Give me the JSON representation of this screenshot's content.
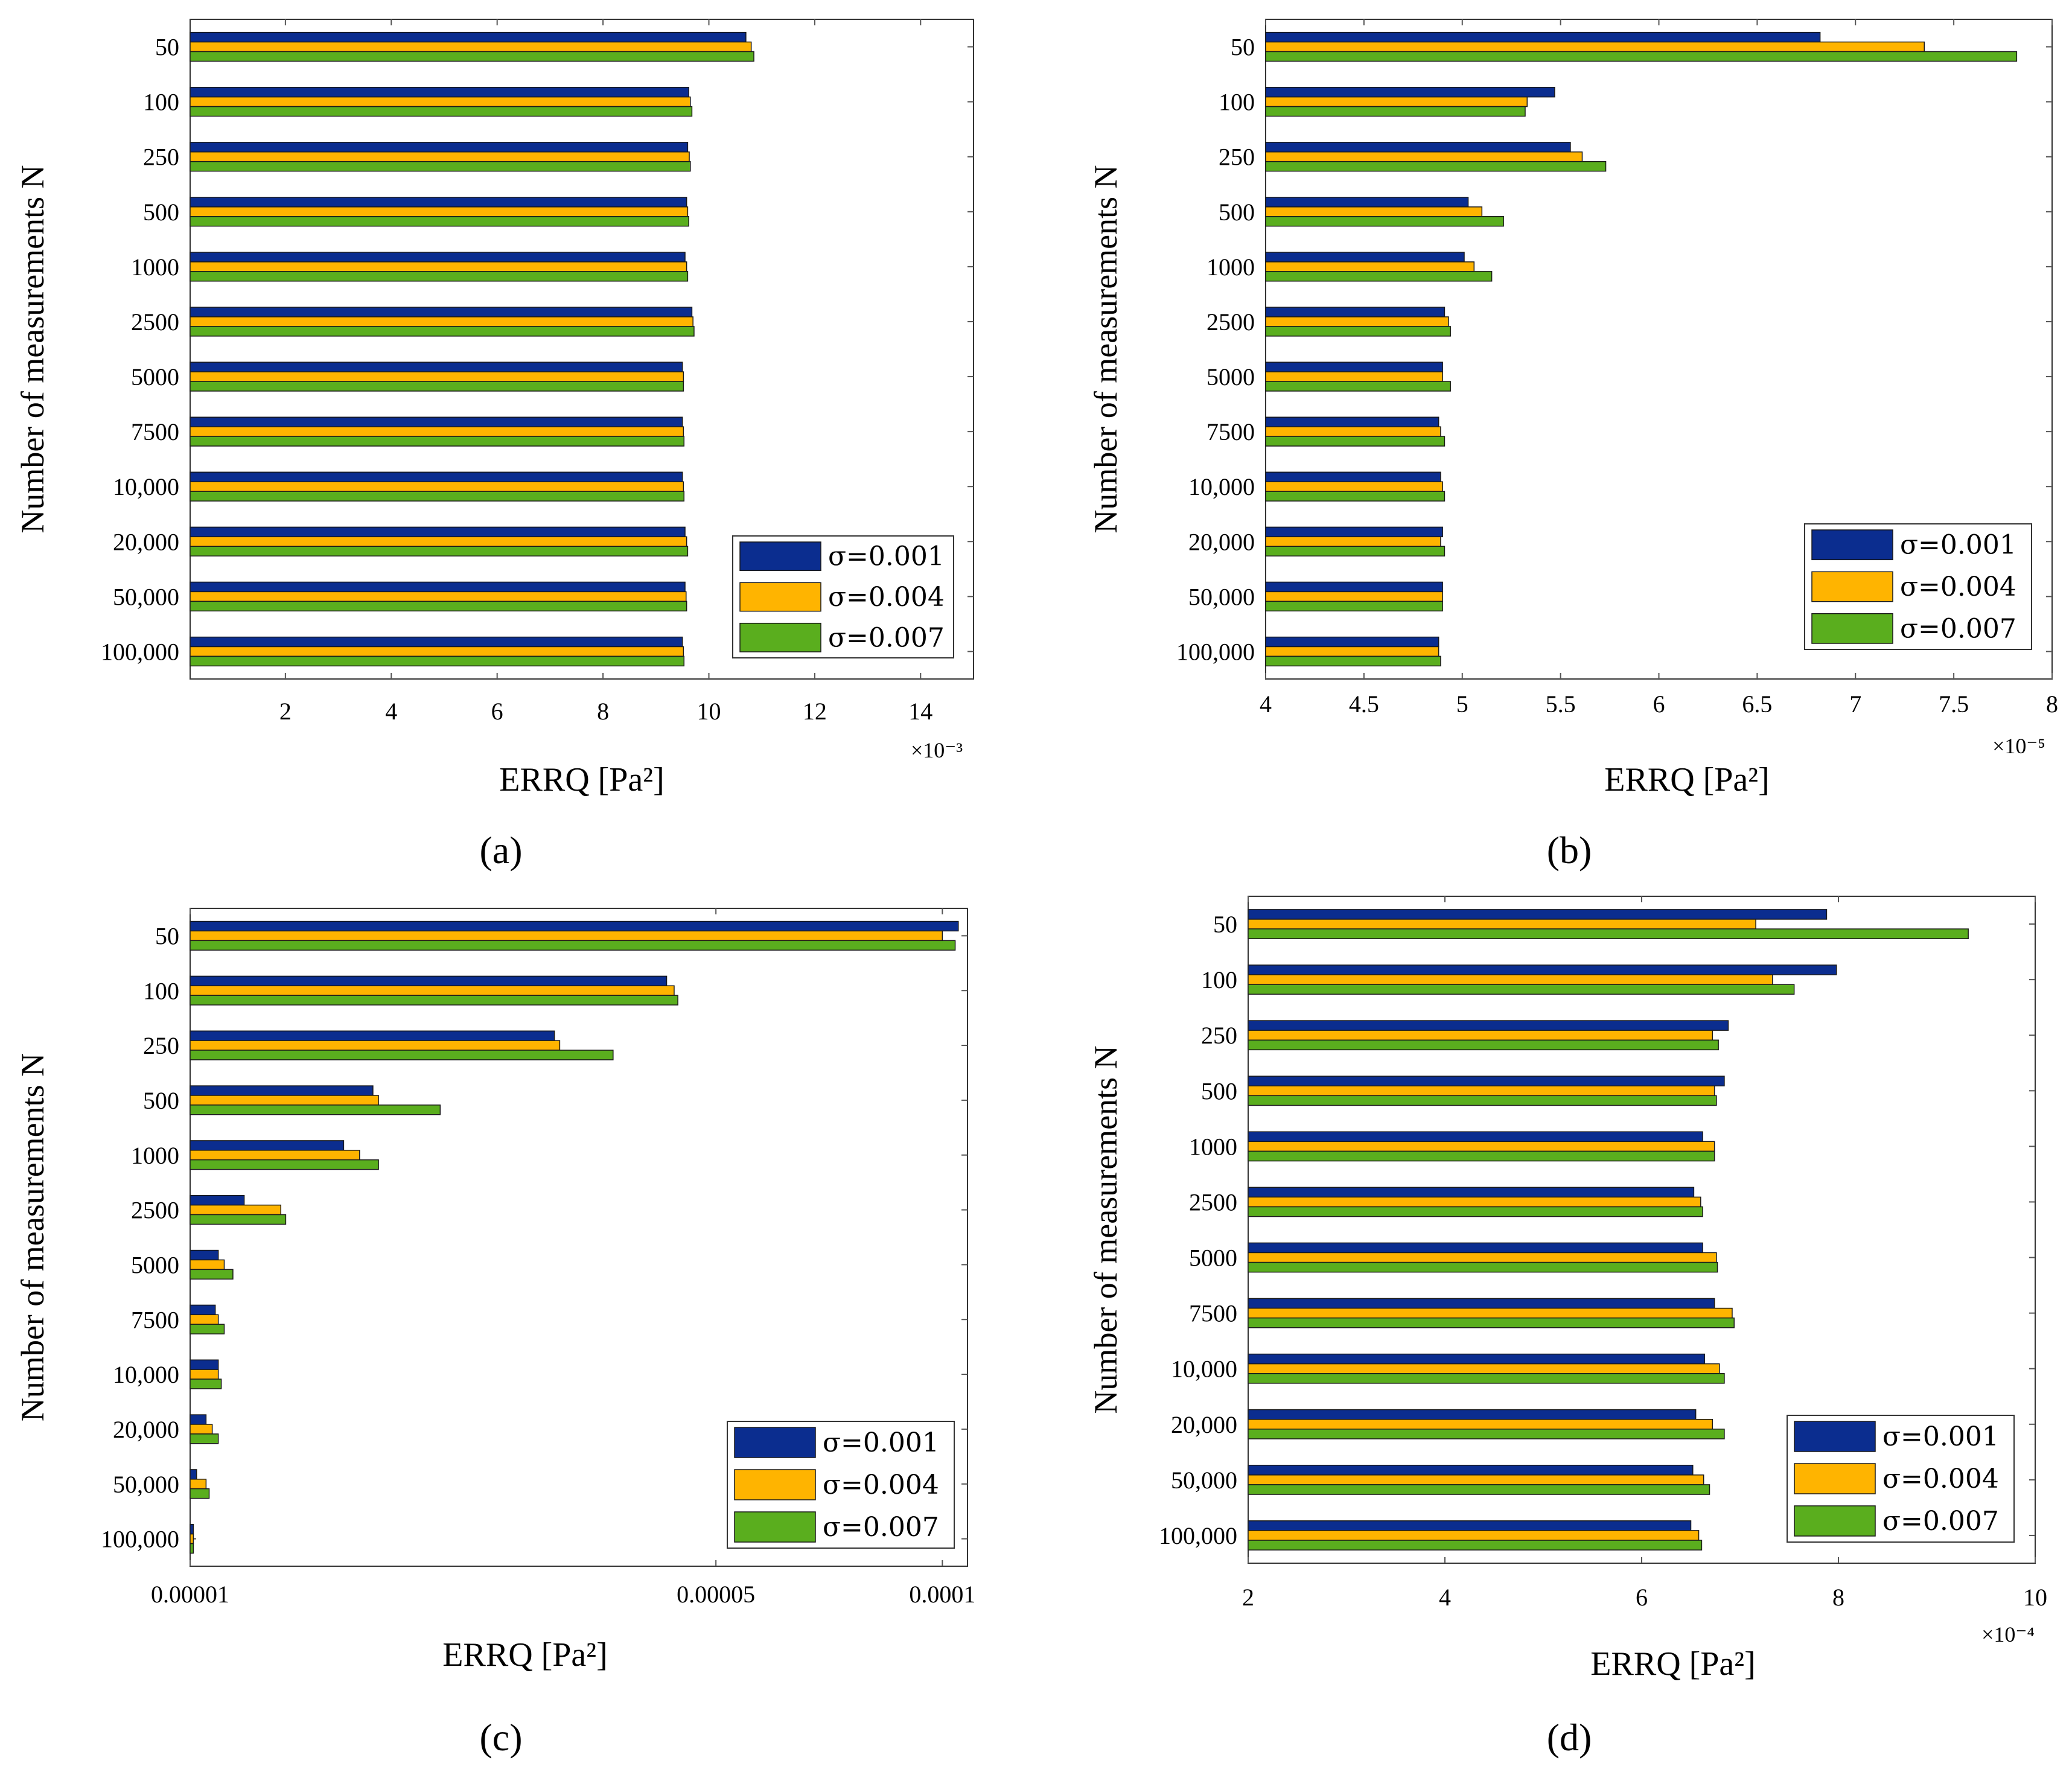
{
  "colors": {
    "series": [
      "#0b2d8f",
      "#ffb400",
      "#5aae1e"
    ],
    "frame": "#000000",
    "tick": "#5a5a5a"
  },
  "chart_data": [
    {
      "panel_label": "(a)",
      "type": "bar",
      "orientation": "horizontal",
      "xscale": "linear",
      "xlabel": "ERRQ  [Pa²]",
      "ylabel": "Number of measurements N",
      "multiplier": "×10⁻³",
      "xlim": [
        0.2,
        15
      ],
      "xticks": [
        2,
        4,
        6,
        8,
        10,
        12,
        14
      ],
      "xtick_labels": [
        "2",
        "4",
        "6",
        "8",
        "10",
        "12",
        "14"
      ],
      "categories": [
        "50",
        "100",
        "250",
        "500",
        "1000",
        "2500",
        "5000",
        "7500",
        "10,000",
        "20,000",
        "50,000",
        "100,000"
      ],
      "legend_position": "bottom-right",
      "series": [
        {
          "name": "σ=0.001",
          "values": [
            10.7,
            9.62,
            9.6,
            9.58,
            9.55,
            9.68,
            9.5,
            9.5,
            9.5,
            9.55,
            9.55,
            9.5
          ]
        },
        {
          "name": "σ=0.004",
          "values": [
            10.8,
            9.65,
            9.63,
            9.6,
            9.58,
            9.7,
            9.52,
            9.52,
            9.52,
            9.58,
            9.57,
            9.52
          ]
        },
        {
          "name": "σ=0.007",
          "values": [
            10.85,
            9.68,
            9.65,
            9.62,
            9.6,
            9.72,
            9.52,
            9.53,
            9.53,
            9.6,
            9.58,
            9.53
          ]
        }
      ]
    },
    {
      "panel_label": "(b)",
      "type": "bar",
      "orientation": "horizontal",
      "xscale": "linear",
      "xlabel": "ERRQ  [Pa²]",
      "ylabel": "Number of measurements N",
      "multiplier": "×10⁻⁵",
      "xlim": [
        4,
        8
      ],
      "xticks": [
        4,
        4.5,
        5,
        5.5,
        6,
        6.5,
        7,
        7.5,
        8
      ],
      "xtick_labels": [
        "4",
        "4.5",
        "5",
        "5.5",
        "6",
        "6.5",
        "7",
        "7.5",
        "8"
      ],
      "categories": [
        "50",
        "100",
        "250",
        "500",
        "1000",
        "2500",
        "5000",
        "7500",
        "10,000",
        "20,000",
        "50,000",
        "100,000"
      ],
      "legend_position": "bottom-right",
      "series": [
        {
          "name": "σ=0.001",
          "values": [
            6.82,
            5.47,
            5.55,
            5.03,
            5.01,
            4.91,
            4.9,
            4.88,
            4.89,
            4.9,
            4.9,
            4.88
          ]
        },
        {
          "name": "σ=0.004",
          "values": [
            7.35,
            5.33,
            5.61,
            5.1,
            5.06,
            4.93,
            4.9,
            4.89,
            4.9,
            4.89,
            4.9,
            4.88
          ]
        },
        {
          "name": "σ=0.007",
          "values": [
            7.82,
            5.32,
            5.73,
            5.21,
            5.15,
            4.94,
            4.94,
            4.91,
            4.91,
            4.91,
            4.9,
            4.89
          ]
        }
      ]
    },
    {
      "panel_label": "(c)",
      "type": "bar",
      "orientation": "horizontal",
      "xscale": "log",
      "xlabel": "ERRQ  [Pa²]",
      "ylabel": "Number of measurements N",
      "multiplier": "",
      "xlim": [
        1e-05,
        0.000108
      ],
      "xticks": [
        1e-05,
        5e-05,
        0.0001
      ],
      "xtick_labels": [
        "0.00001",
        "0.00005",
        "0.0001"
      ],
      "categories": [
        "50",
        "100",
        "250",
        "500",
        "1000",
        "2500",
        "5000",
        "7500",
        "10,000",
        "20,000",
        "50,000",
        "100,000"
      ],
      "legend_position": "bottom-right",
      "series": [
        {
          "name": "σ=0.001",
          "values": [
            0.000105,
            4.3e-05,
            3.05e-05,
            1.75e-05,
            1.6e-05,
            1.18e-05,
            1.09e-05,
            1.08e-05,
            1.09e-05,
            1.05e-05,
            1.02e-05,
            1.01e-05
          ]
        },
        {
          "name": "σ=0.004",
          "values": [
            0.0001,
            4.4e-05,
            3.1e-05,
            1.78e-05,
            1.68e-05,
            1.32e-05,
            1.11e-05,
            1.09e-05,
            1.09e-05,
            1.07e-05,
            1.05e-05,
            1.01e-05
          ]
        },
        {
          "name": "σ=0.007",
          "values": [
            0.000104,
            4.45e-05,
            3.65e-05,
            2.15e-05,
            1.78e-05,
            1.34e-05,
            1.14e-05,
            1.11e-05,
            1.1e-05,
            1.09e-05,
            1.06e-05,
            1.01e-05
          ]
        }
      ]
    },
    {
      "panel_label": "(d)",
      "type": "bar",
      "orientation": "horizontal",
      "xscale": "linear",
      "xlabel": "ERRQ  [Pa²]",
      "ylabel": "Number of measurements N",
      "multiplier": "×10⁻⁴",
      "xlim": [
        2,
        10
      ],
      "xticks": [
        2,
        4,
        6,
        8,
        10
      ],
      "xtick_labels": [
        "2",
        "4",
        "6",
        "8",
        "10"
      ],
      "categories": [
        "50",
        "100",
        "250",
        "500",
        "1000",
        "2500",
        "5000",
        "7500",
        "10,000",
        "20,000",
        "50,000",
        "100,000"
      ],
      "legend_position": "bottom-right",
      "series": [
        {
          "name": "σ=0.001",
          "values": [
            7.88,
            7.98,
            6.88,
            6.84,
            6.62,
            6.53,
            6.62,
            6.74,
            6.64,
            6.55,
            6.52,
            6.5
          ]
        },
        {
          "name": "σ=0.004",
          "values": [
            7.16,
            7.33,
            6.72,
            6.74,
            6.74,
            6.6,
            6.76,
            6.92,
            6.79,
            6.72,
            6.63,
            6.58
          ]
        },
        {
          "name": "σ=0.007",
          "values": [
            9.32,
            7.55,
            6.78,
            6.76,
            6.74,
            6.62,
            6.77,
            6.94,
            6.84,
            6.84,
            6.69,
            6.61
          ]
        }
      ]
    }
  ]
}
